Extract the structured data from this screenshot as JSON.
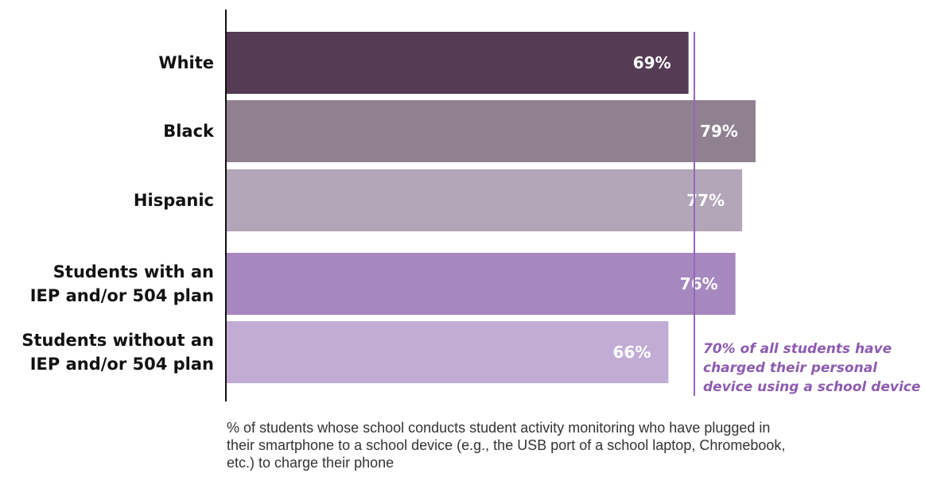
{
  "chart_data": {
    "type": "bar",
    "orientation": "horizontal",
    "categories": [
      [
        "White"
      ],
      [
        "Black"
      ],
      [
        "Hispanic"
      ],
      [
        "Students with an",
        "IEP and/or 504 plan"
      ],
      [
        "Students without an",
        "IEP and/or 504 plan"
      ]
    ],
    "values": [
      69,
      79,
      77,
      76,
      66
    ],
    "value_labels": [
      "69%",
      "79%",
      "77%",
      "76%",
      "66%"
    ],
    "colors": [
      "#553b54",
      "#908191",
      "#b3a6b8",
      "#a688bf",
      "#c2acd5"
    ],
    "xlim": [
      0,
      100
    ],
    "reference_line": {
      "value": 70,
      "color": "#9466bd",
      "label": [
        "70% of all students have",
        "charged their personal",
        "device using a school device"
      ]
    },
    "grid": false,
    "legend": "none"
  },
  "caption": "% of students whose school conducts student activity monitoring who have plugged in their smartphone to a school device (e.g., the USB port of a school laptop, Chromebook, etc.) to charge their phone"
}
